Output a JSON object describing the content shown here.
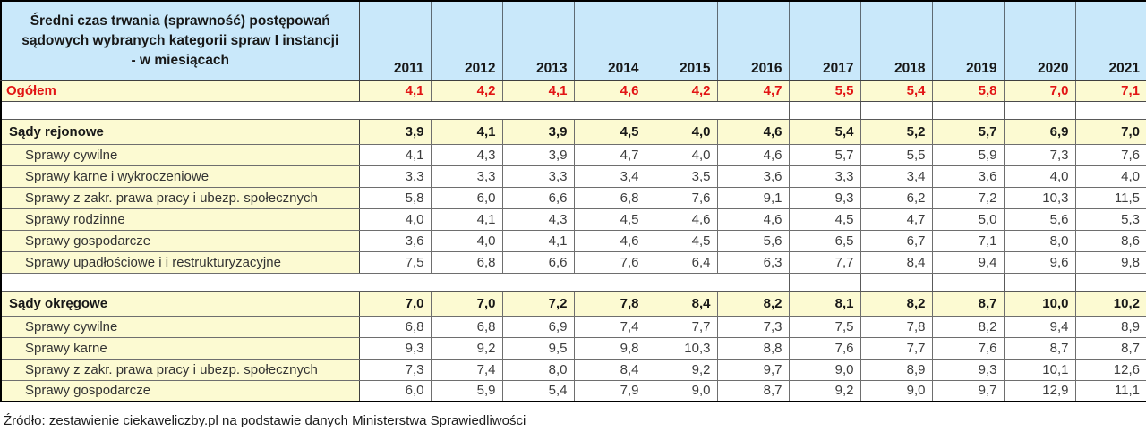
{
  "colors": {
    "header_bg": "#c9e8fa",
    "band_bg": "#fcfad2",
    "total_text": "#e21414",
    "grid": "#6e6e6e",
    "outer_border": "#000000"
  },
  "table": {
    "title": "Średni czas trwania (sprawność) postępowań sądowych wybranych kategorii spraw I instancji - w miesiącach",
    "title_lines": [
      "Średni czas trwania (sprawność) postępowań",
      "sądowych wybranych kategorii spraw I instancji",
      "- w miesiącach"
    ],
    "years": [
      "2011",
      "2012",
      "2013",
      "2014",
      "2015",
      "2016",
      "2017",
      "2018",
      "2019",
      "2020",
      "2021"
    ],
    "spacer_border_from_year_index": 6,
    "rows": [
      {
        "type": "total",
        "label": "Ogółem",
        "values": [
          "4,1",
          "4,2",
          "4,1",
          "4,6",
          "4,2",
          "4,7",
          "5,5",
          "5,4",
          "5,8",
          "7,0",
          "7,1"
        ]
      },
      {
        "type": "spacer",
        "label": ""
      },
      {
        "type": "section",
        "label": "Sądy rejonowe",
        "values": [
          "3,9",
          "4,1",
          "3,9",
          "4,5",
          "4,0",
          "4,6",
          "5,4",
          "5,2",
          "5,7",
          "6,9",
          "7,0"
        ]
      },
      {
        "type": "detail",
        "label": "Sprawy cywilne",
        "values": [
          "4,1",
          "4,3",
          "3,9",
          "4,7",
          "4,0",
          "4,6",
          "5,7",
          "5,5",
          "5,9",
          "7,3",
          "7,6"
        ]
      },
      {
        "type": "detail",
        "label": "Sprawy karne i wykroczeniowe",
        "values": [
          "3,3",
          "3,3",
          "3,3",
          "3,4",
          "3,5",
          "3,6",
          "3,3",
          "3,4",
          "3,6",
          "4,0",
          "4,0"
        ]
      },
      {
        "type": "detail",
        "label": "Sprawy z zakr. prawa pracy i ubezp. społecznych",
        "values": [
          "5,8",
          "6,0",
          "6,6",
          "6,8",
          "7,6",
          "9,1",
          "9,3",
          "6,2",
          "7,2",
          "10,3",
          "11,5"
        ]
      },
      {
        "type": "detail",
        "label": "Sprawy rodzinne",
        "values": [
          "4,0",
          "4,1",
          "4,3",
          "4,5",
          "4,6",
          "4,6",
          "4,5",
          "4,7",
          "5,0",
          "5,6",
          "5,3"
        ]
      },
      {
        "type": "detail",
        "label": "Sprawy gospodarcze",
        "values": [
          "3,6",
          "4,0",
          "4,1",
          "4,6",
          "4,5",
          "5,6",
          "6,5",
          "6,7",
          "7,1",
          "8,0",
          "8,6"
        ]
      },
      {
        "type": "detail",
        "label": "Sprawy upadłościowe i  i restrukturyzacyjne",
        "values": [
          "7,5",
          "6,8",
          "6,6",
          "7,6",
          "6,4",
          "6,3",
          "7,7",
          "8,4",
          "9,4",
          "9,6",
          "9,8"
        ]
      },
      {
        "type": "spacer",
        "label": ""
      },
      {
        "type": "section",
        "label": "Sądy okręgowe",
        "values": [
          "7,0",
          "7,0",
          "7,2",
          "7,8",
          "8,4",
          "8,2",
          "8,1",
          "8,2",
          "8,7",
          "10,0",
          "10,2"
        ]
      },
      {
        "type": "detail",
        "label": "Sprawy cywilne",
        "values": [
          "6,8",
          "6,8",
          "6,9",
          "7,4",
          "7,7",
          "7,3",
          "7,5",
          "7,8",
          "8,2",
          "9,4",
          "8,9"
        ]
      },
      {
        "type": "detail",
        "label": "Sprawy karne",
        "values": [
          "9,3",
          "9,2",
          "9,5",
          "9,8",
          "10,3",
          "8,8",
          "7,6",
          "7,7",
          "7,6",
          "8,7",
          "8,7"
        ]
      },
      {
        "type": "detail",
        "label": "Sprawy z zakr. prawa pracy i ubezp. społecznych",
        "values": [
          "7,3",
          "7,4",
          "8,0",
          "8,4",
          "9,2",
          "9,7",
          "9,0",
          "8,9",
          "9,3",
          "10,1",
          "12,6"
        ]
      },
      {
        "type": "detail",
        "label": "Sprawy gospodarcze",
        "values": [
          "6,0",
          "5,9",
          "5,4",
          "7,9",
          "9,0",
          "8,7",
          "9,2",
          "9,0",
          "9,7",
          "12,9",
          "11,1"
        ]
      }
    ]
  },
  "footer": {
    "source": "Źródło: zestawienie ciekaweliczby.pl na podstawie danych Ministerstwa Sprawiedliwości"
  },
  "chart_data": {
    "type": "table",
    "title": "Średni czas trwania (sprawność) postępowań sądowych wybranych kategorii spraw I instancji - w miesiącach",
    "categories": [
      "2011",
      "2012",
      "2013",
      "2014",
      "2015",
      "2016",
      "2017",
      "2018",
      "2019",
      "2020",
      "2021"
    ],
    "series": [
      {
        "name": "Ogółem",
        "group": null,
        "values": [
          4.1,
          4.2,
          4.1,
          4.6,
          4.2,
          4.7,
          5.5,
          5.4,
          5.8,
          7.0,
          7.1
        ]
      },
      {
        "name": "Sądy rejonowe",
        "group": null,
        "values": [
          3.9,
          4.1,
          3.9,
          4.5,
          4.0,
          4.6,
          5.4,
          5.2,
          5.7,
          6.9,
          7.0
        ]
      },
      {
        "name": "Sprawy cywilne",
        "group": "Sądy rejonowe",
        "values": [
          4.1,
          4.3,
          3.9,
          4.7,
          4.0,
          4.6,
          5.7,
          5.5,
          5.9,
          7.3,
          7.6
        ]
      },
      {
        "name": "Sprawy karne i wykroczeniowe",
        "group": "Sądy rejonowe",
        "values": [
          3.3,
          3.3,
          3.3,
          3.4,
          3.5,
          3.6,
          3.3,
          3.4,
          3.6,
          4.0,
          4.0
        ]
      },
      {
        "name": "Sprawy z zakr. prawa pracy i ubezp. społecznych",
        "group": "Sądy rejonowe",
        "values": [
          5.8,
          6.0,
          6.6,
          6.8,
          7.6,
          9.1,
          9.3,
          6.2,
          7.2,
          10.3,
          11.5
        ]
      },
      {
        "name": "Sprawy rodzinne",
        "group": "Sądy rejonowe",
        "values": [
          4.0,
          4.1,
          4.3,
          4.5,
          4.6,
          4.6,
          4.5,
          4.7,
          5.0,
          5.6,
          5.3
        ]
      },
      {
        "name": "Sprawy gospodarcze",
        "group": "Sądy rejonowe",
        "values": [
          3.6,
          4.0,
          4.1,
          4.6,
          4.5,
          5.6,
          6.5,
          6.7,
          7.1,
          8.0,
          8.6
        ]
      },
      {
        "name": "Sprawy upadłościowe i i restrukturyzacyjne",
        "group": "Sądy rejonowe",
        "values": [
          7.5,
          6.8,
          6.6,
          7.6,
          6.4,
          6.3,
          7.7,
          8.4,
          9.4,
          9.6,
          9.8
        ]
      },
      {
        "name": "Sądy okręgowe",
        "group": null,
        "values": [
          7.0,
          7.0,
          7.2,
          7.8,
          8.4,
          8.2,
          8.1,
          8.2,
          8.7,
          10.0,
          10.2
        ]
      },
      {
        "name": "Sprawy cywilne",
        "group": "Sądy okręgowe",
        "values": [
          6.8,
          6.8,
          6.9,
          7.4,
          7.7,
          7.3,
          7.5,
          7.8,
          8.2,
          9.4,
          8.9
        ]
      },
      {
        "name": "Sprawy karne",
        "group": "Sądy okręgowe",
        "values": [
          9.3,
          9.2,
          9.5,
          9.8,
          10.3,
          8.8,
          7.6,
          7.7,
          7.6,
          8.7,
          8.7
        ]
      },
      {
        "name": "Sprawy z zakr. prawa pracy i ubezp. społecznych",
        "group": "Sądy okręgowe",
        "values": [
          7.3,
          7.4,
          8.0,
          8.4,
          9.2,
          9.7,
          9.0,
          8.9,
          9.3,
          10.1,
          12.6
        ]
      },
      {
        "name": "Sprawy gospodarcze",
        "group": "Sądy okręgowe",
        "values": [
          6.0,
          5.9,
          5.4,
          7.9,
          9.0,
          8.7,
          9.2,
          9.0,
          9.7,
          12.9,
          11.1
        ]
      }
    ],
    "note": "Źródło: zestawienie ciekaweliczby.pl na podstawie danych Ministerstwa Sprawiedliwości"
  }
}
